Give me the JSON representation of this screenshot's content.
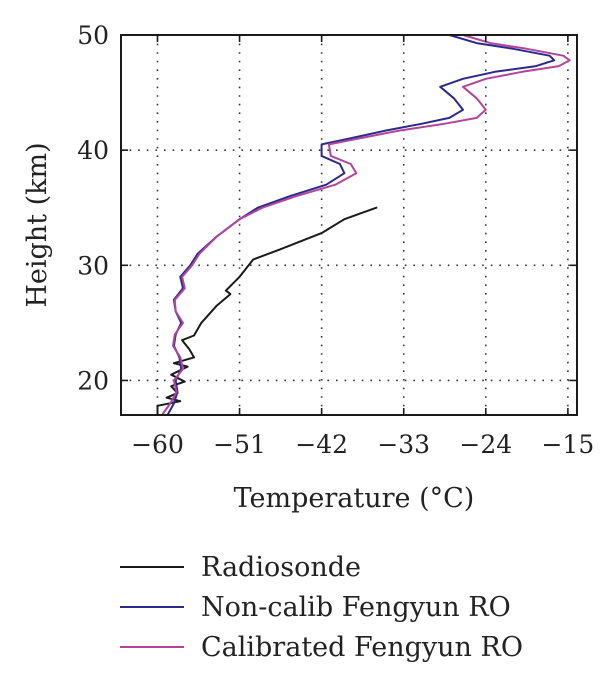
{
  "chart_data": {
    "type": "line",
    "xlabel": "Temperature (°C)",
    "ylabel": "Height (km)",
    "xlim": [
      -64,
      -14
    ],
    "ylim": [
      17,
      50
    ],
    "xticks": [
      -60,
      -51,
      -42,
      -33,
      -24,
      -15
    ],
    "yticks": [
      20,
      30,
      40,
      50
    ],
    "xtick_labels": [
      "−60",
      "−51",
      "−42",
      "−33",
      "−24",
      "−15"
    ],
    "ytick_labels": [
      "20",
      "30",
      "40",
      "50"
    ],
    "grid": true,
    "legend_position": "bottom",
    "series": [
      {
        "name": "Radiosonde",
        "color": "#1a1a1a",
        "points": [
          [
            -60.0,
            17.0
          ],
          [
            -60.0,
            17.8
          ],
          [
            -57.5,
            18.2
          ],
          [
            -59.0,
            18.5
          ],
          [
            -57.8,
            18.9
          ],
          [
            -58.5,
            19.5
          ],
          [
            -57.0,
            19.9
          ],
          [
            -58.5,
            20.5
          ],
          [
            -56.7,
            21.2
          ],
          [
            -58.2,
            21.5
          ],
          [
            -56.0,
            22.0
          ],
          [
            -56.5,
            22.7
          ],
          [
            -57.3,
            23.5
          ],
          [
            -56.0,
            23.9
          ],
          [
            -55.2,
            25.0
          ],
          [
            -53.5,
            26.5
          ],
          [
            -52.0,
            27.5
          ],
          [
            -52.5,
            27.8
          ],
          [
            -51.0,
            29.0
          ],
          [
            -49.5,
            30.5
          ],
          [
            -46.5,
            31.4
          ],
          [
            -42.0,
            32.8
          ],
          [
            -39.5,
            34.0
          ],
          [
            -36.0,
            35.0
          ]
        ]
      },
      {
        "name": "Non-calib Fengyun RO",
        "color": "#2b2a8c",
        "points": [
          [
            -58.9,
            17.0
          ],
          [
            -58.2,
            18.0
          ],
          [
            -57.8,
            19.0
          ],
          [
            -58.0,
            20.0
          ],
          [
            -57.4,
            21.0
          ],
          [
            -57.6,
            22.0
          ],
          [
            -58.2,
            23.0
          ],
          [
            -58.0,
            24.0
          ],
          [
            -57.4,
            25.0
          ],
          [
            -58.0,
            26.0
          ],
          [
            -58.2,
            27.0
          ],
          [
            -57.2,
            28.0
          ],
          [
            -57.5,
            29.0
          ],
          [
            -56.4,
            30.0
          ],
          [
            -55.6,
            31.0
          ],
          [
            -53.5,
            32.5
          ],
          [
            -51.0,
            34.0
          ],
          [
            -49.0,
            35.0
          ],
          [
            -45.5,
            36.0
          ],
          [
            -41.5,
            37.0
          ],
          [
            -39.5,
            38.0
          ],
          [
            -40.0,
            38.8
          ],
          [
            -42.0,
            39.5
          ],
          [
            -42.0,
            40.5
          ],
          [
            -39.0,
            41.0
          ],
          [
            -35.0,
            41.7
          ],
          [
            -31.0,
            42.3
          ],
          [
            -28.0,
            42.8
          ],
          [
            -26.5,
            43.5
          ],
          [
            -27.5,
            44.5
          ],
          [
            -29.0,
            45.5
          ],
          [
            -26.5,
            46.2
          ],
          [
            -23.0,
            46.8
          ],
          [
            -18.5,
            47.3
          ],
          [
            -16.5,
            47.8
          ],
          [
            -17.0,
            48.2
          ],
          [
            -21.0,
            48.8
          ],
          [
            -25.0,
            49.3
          ],
          [
            -28.0,
            50.0
          ]
        ]
      },
      {
        "name": "Calibrated Fengyun RO",
        "color": "#b2459a",
        "points": [
          [
            -59.5,
            17.0
          ],
          [
            -58.6,
            18.0
          ],
          [
            -57.9,
            19.0
          ],
          [
            -58.2,
            20.0
          ],
          [
            -57.2,
            21.0
          ],
          [
            -57.5,
            22.0
          ],
          [
            -58.3,
            23.0
          ],
          [
            -58.1,
            24.0
          ],
          [
            -57.2,
            25.0
          ],
          [
            -58.0,
            26.0
          ],
          [
            -58.1,
            27.0
          ],
          [
            -57.0,
            28.0
          ],
          [
            -57.3,
            29.0
          ],
          [
            -56.2,
            30.0
          ],
          [
            -55.4,
            31.0
          ],
          [
            -53.5,
            32.5
          ],
          [
            -51.0,
            34.0
          ],
          [
            -48.5,
            35.0
          ],
          [
            -44.8,
            36.0
          ],
          [
            -40.5,
            37.0
          ],
          [
            -38.2,
            38.0
          ],
          [
            -38.8,
            38.8
          ],
          [
            -41.0,
            39.5
          ],
          [
            -41.2,
            40.5
          ],
          [
            -38.0,
            41.0
          ],
          [
            -33.5,
            41.7
          ],
          [
            -28.5,
            42.3
          ],
          [
            -25.0,
            42.8
          ],
          [
            -24.0,
            43.5
          ],
          [
            -25.0,
            44.5
          ],
          [
            -26.5,
            45.5
          ],
          [
            -24.0,
            46.2
          ],
          [
            -20.0,
            46.8
          ],
          [
            -16.0,
            47.3
          ],
          [
            -14.8,
            47.8
          ],
          [
            -15.5,
            48.2
          ],
          [
            -19.5,
            48.8
          ],
          [
            -23.5,
            49.3
          ],
          [
            -26.5,
            50.0
          ]
        ]
      }
    ]
  }
}
